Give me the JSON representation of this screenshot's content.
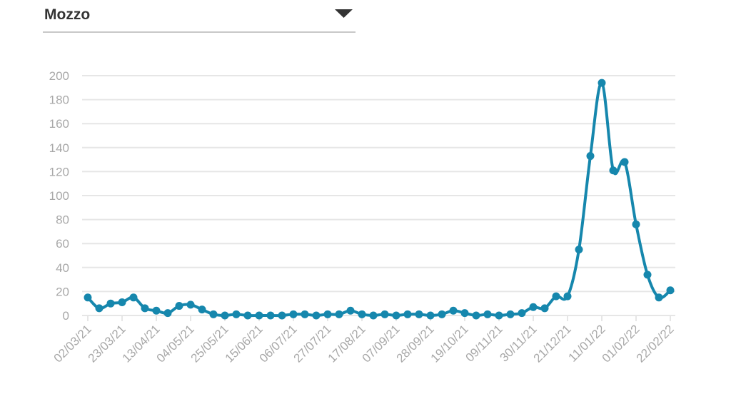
{
  "dropdown": {
    "label": "Mozzo"
  },
  "chart_data": {
    "type": "line",
    "categories": [
      "02/03/21",
      null,
      null,
      "23/03/21",
      null,
      null,
      "13/04/21",
      null,
      null,
      "04/05/21",
      null,
      null,
      "25/05/21",
      null,
      null,
      "15/06/21",
      null,
      null,
      "06/07/21",
      null,
      null,
      "27/07/21",
      null,
      null,
      "17/08/21",
      null,
      null,
      "07/09/21",
      null,
      null,
      "28/09/21",
      null,
      null,
      "19/10/21",
      null,
      null,
      "09/11/21",
      null,
      null,
      "30/11/21",
      null,
      null,
      "21/12/21",
      null,
      null,
      "11/01/22",
      null,
      null,
      "01/02/22",
      null,
      null,
      "22/02/22"
    ],
    "series": [
      {
        "color": "#1687ad",
        "values": [
          15,
          6,
          10,
          11,
          15,
          6,
          4,
          2,
          8,
          9,
          5,
          1,
          0,
          1,
          0,
          0,
          0,
          0,
          1,
          1,
          0,
          1,
          1,
          4,
          1,
          0,
          1,
          0,
          1,
          1,
          0,
          1,
          4,
          2,
          0,
          1,
          0,
          1,
          2,
          7,
          6,
          16,
          16,
          55,
          133,
          194,
          121,
          128,
          76,
          34,
          15,
          21
        ]
      }
    ],
    "ylim": [
      0,
      200
    ],
    "yticks": [
      0,
      20,
      40,
      60,
      80,
      100,
      120,
      140,
      160,
      180,
      200
    ],
    "grid": true
  }
}
